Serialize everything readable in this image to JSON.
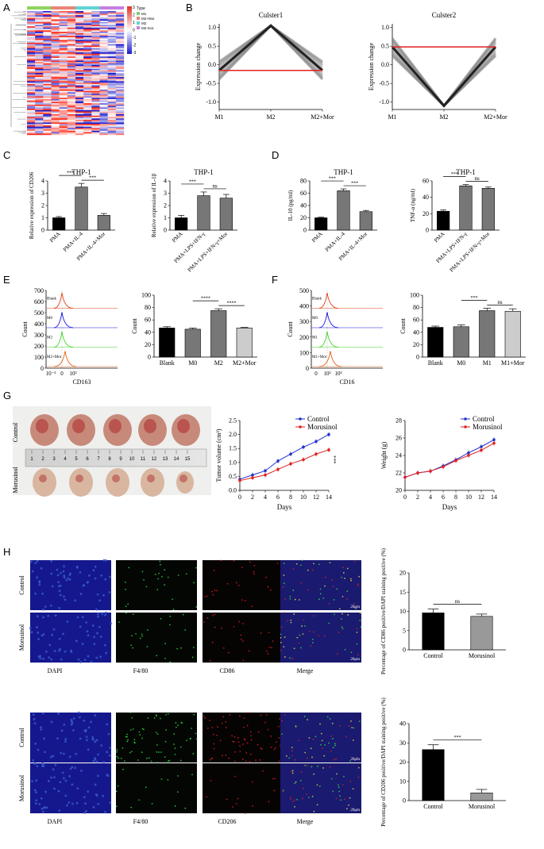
{
  "panels": {
    "A": "A",
    "B": "B",
    "C": "C",
    "D": "D",
    "E": "E",
    "F": "F",
    "G": "G",
    "H": "H"
  },
  "colors": {
    "blue": "#2233cc",
    "red": "#e02020",
    "black": "#000000",
    "dark_gray": "#777777",
    "light_gray": "#cccccc",
    "heat_red": "#e0301e",
    "heat_blue": "#1a1acc"
  },
  "heatmap": {
    "legend_title": "Type",
    "legend_items": [
      {
        "label": "M1",
        "color": "#7ccd7c"
      },
      {
        "label": "M2+Mor",
        "color": "#e8857a"
      },
      {
        "label": "M2",
        "color": "#5fd3d3"
      },
      {
        "label": "M2-mor",
        "color": "#c77ee0"
      }
    ],
    "scale_ticks": [
      "3",
      "2",
      "1",
      "0",
      "-1",
      "-2",
      "-3"
    ],
    "top_bar_colors": [
      "#8fd45a",
      "#e8857a",
      "#5fd3d3",
      "#c77ee0"
    ]
  },
  "chart_data": [
    {
      "id": "B1",
      "type": "line",
      "title": "Culster1",
      "ylabel": "Expression change",
      "categories": [
        "M1",
        "M2",
        "M2+Mor"
      ],
      "yticks": [
        "1.0",
        "0.5",
        "0.0",
        "-0.5",
        "-1.0"
      ],
      "ylim": [
        -1.2,
        1.1
      ],
      "mean_line": [
        -0.15,
        1.05,
        -0.15
      ],
      "cluster_center": -0.15
    },
    {
      "id": "B2",
      "type": "line",
      "title": "Culster2",
      "ylabel": "Expression change",
      "categories": [
        "M1",
        "M2",
        "M2+Mor"
      ],
      "yticks": [
        "1.0",
        "0.5",
        "0.0",
        "-0.5",
        "-1.0"
      ],
      "ylim": [
        -1.2,
        1.1
      ],
      "mean_line": [
        0.48,
        -1.1,
        0.48
      ],
      "cluster_center": 0.48
    },
    {
      "id": "C1",
      "type": "bar",
      "title": "THP-1",
      "ylabel": "Relative expression of CD206",
      "categories": [
        "PMA",
        "PMA+IL-4",
        "PMA+IL-4+Mor"
      ],
      "values": [
        1.0,
        3.5,
        1.2
      ],
      "errors": [
        0.1,
        0.3,
        0.15
      ],
      "yticks": [
        "0",
        "1",
        "2",
        "3",
        "4"
      ],
      "ylim": [
        0,
        4
      ],
      "sig": [
        "***",
        "***"
      ]
    },
    {
      "id": "C2",
      "type": "bar",
      "title": "THP-1",
      "ylabel": "Relative expression of IL-1β",
      "categories": [
        "PMA",
        "PMA+LPS+IFN-γ",
        "PMA+LPS+IFN-γ+Mor"
      ],
      "values": [
        1.0,
        2.8,
        2.6
      ],
      "errors": [
        0.2,
        0.3,
        0.3
      ],
      "yticks": [
        "0",
        "1",
        "2",
        "3",
        "4"
      ],
      "ylim": [
        0,
        4
      ],
      "sig": [
        "***",
        "ns"
      ]
    },
    {
      "id": "D1",
      "type": "bar",
      "title": "THP-1",
      "ylabel": "IL-10 (pg/ml)",
      "categories": [
        "PMA",
        "PMA+IL-4",
        "PMA+IL-4+Mor"
      ],
      "values": [
        20,
        64,
        30
      ],
      "errors": [
        1,
        3,
        2
      ],
      "yticks": [
        "0",
        "20",
        "40",
        "60",
        "80"
      ],
      "ylim": [
        0,
        80
      ],
      "sig": [
        "***",
        "***"
      ]
    },
    {
      "id": "D2",
      "type": "bar",
      "title": "THP-1",
      "ylabel": "TNF-α (ng/ml)",
      "categories": [
        "PMA",
        "PMA+LPS+IFN-γ",
        "PMA+LPS+IFN-γ+Mor"
      ],
      "values": [
        23,
        54,
        51
      ],
      "errors": [
        1.5,
        1.5,
        1.5
      ],
      "yticks": [
        "0",
        "20",
        "40",
        "60"
      ],
      "ylim": [
        0,
        60
      ],
      "sig": [
        "***",
        "ns"
      ]
    },
    {
      "id": "E1",
      "type": "histogram",
      "xlabel": "CD163",
      "ylabel": "Count",
      "yticks": [
        "700",
        "600",
        "500",
        "400",
        "300",
        "200",
        "100",
        "0"
      ],
      "xticks": [
        "10⁻²",
        "0",
        "10²"
      ],
      "tracks": [
        {
          "label": "Blank",
          "color": "#e04010"
        },
        {
          "label": "M0",
          "color": "#1010e0"
        },
        {
          "label": "M2",
          "color": "#40d020"
        },
        {
          "label": "M2+Mor",
          "color": "#e06010"
        }
      ]
    },
    {
      "id": "E2",
      "type": "bar",
      "ylabel": "Count",
      "categories": [
        "Blank",
        "M0",
        "M2",
        "M2+Mor"
      ],
      "values": [
        47,
        45,
        75,
        47
      ],
      "errors": [
        2,
        2,
        3,
        1
      ],
      "colors": [
        "#000000",
        "#777777",
        "#777777",
        "#cccccc"
      ],
      "yticks": [
        "0",
        "20",
        "40",
        "60",
        "80",
        "100"
      ],
      "ylim": [
        0,
        100
      ],
      "sig": [
        "****",
        "****"
      ]
    },
    {
      "id": "F1",
      "type": "histogram",
      "xlabel": "CD16",
      "ylabel": "Count",
      "yticks": [
        "500",
        "400",
        "300",
        "200",
        "100",
        "0"
      ],
      "xticks": [
        "0",
        "10²",
        "10³"
      ],
      "tracks": [
        {
          "label": "Blank",
          "color": "#e04010"
        },
        {
          "label": "M0",
          "color": "#1010e0"
        },
        {
          "label": "M1",
          "color": "#40d020"
        },
        {
          "label": "M1+Mor",
          "color": "#e06010"
        }
      ]
    },
    {
      "id": "F2",
      "type": "bar",
      "ylabel": "Count",
      "categories": [
        "Blank",
        "M0",
        "M1",
        "M1+Mor"
      ],
      "values": [
        48,
        49,
        75,
        74
      ],
      "errors": [
        2,
        3,
        4,
        4
      ],
      "colors": [
        "#000000",
        "#777777",
        "#777777",
        "#cccccc"
      ],
      "yticks": [
        "0",
        "20",
        "40",
        "60",
        "80",
        "100"
      ],
      "ylim": [
        0,
        100
      ],
      "sig": [
        "***",
        "ns"
      ]
    },
    {
      "id": "G1",
      "type": "line",
      "ylabel": "Tumor volume (cm³)",
      "xlabel": "Days",
      "x": [
        0,
        2,
        4,
        6,
        8,
        10,
        12,
        14
      ],
      "xticks": [
        "0",
        "2",
        "4",
        "6",
        "8",
        "10",
        "12",
        "14"
      ],
      "yticks": [
        "0.0",
        "0.5",
        "1.0",
        "1.5",
        "2.0",
        "2.5"
      ],
      "ylim": [
        0,
        2.5
      ],
      "series": [
        {
          "name": "Control",
          "color": "#2233cc",
          "values": [
            0.4,
            0.55,
            0.7,
            1.05,
            1.3,
            1.55,
            1.75,
            2.0
          ]
        },
        {
          "name": "Morusinol",
          "color": "#e02020",
          "values": [
            0.35,
            0.45,
            0.55,
            0.75,
            0.95,
            1.1,
            1.3,
            1.45
          ]
        }
      ],
      "sig": "***"
    },
    {
      "id": "G2",
      "type": "line",
      "ylabel": "Weight (g)",
      "xlabel": "Days",
      "x": [
        0,
        2,
        4,
        6,
        8,
        10,
        12,
        14
      ],
      "xticks": [
        "0",
        "2",
        "4",
        "6",
        "8",
        "10",
        "12",
        "14"
      ],
      "yticks": [
        "20",
        "22",
        "24",
        "26",
        "28"
      ],
      "ylim": [
        20,
        28
      ],
      "series": [
        {
          "name": "Control",
          "color": "#2233cc",
          "values": [
            21.5,
            22,
            22.2,
            22.8,
            23.5,
            24.3,
            25,
            25.8
          ]
        },
        {
          "name": "Morusinol",
          "color": "#e02020",
          "values": [
            21.5,
            22,
            22.2,
            22.7,
            23.4,
            24,
            24.6,
            25.4
          ]
        }
      ]
    },
    {
      "id": "H1",
      "type": "bar",
      "ylabel": "Percentage of CD86 positive/DAPI staining positive (%)",
      "categories": [
        "Control",
        "Morusinol"
      ],
      "values": [
        9.6,
        8.7
      ],
      "errors": [
        1.0,
        0.6
      ],
      "colors": [
        "#000000",
        "#999999"
      ],
      "yticks": [
        "0",
        "5",
        "10",
        "15",
        "20"
      ],
      "ylim": [
        0,
        20
      ],
      "sig": "ns"
    },
    {
      "id": "H2",
      "type": "bar",
      "ylabel": "Percentage of CD206 positive/DAPI staining positive (%)",
      "categories": [
        "Control",
        "Morusinol"
      ],
      "values": [
        26.5,
        4.0
      ],
      "errors": [
        2.5,
        1.8
      ],
      "colors": [
        "#000000",
        "#999999"
      ],
      "yticks": [
        "0",
        "10",
        "20",
        "30",
        "40"
      ],
      "ylim": [
        0,
        40
      ],
      "sig": "***"
    }
  ],
  "photo": {
    "row_labels": [
      "Control",
      "Morusinol"
    ],
    "ruler_numbers": [
      "1",
      "2",
      "3",
      "4",
      "5",
      "6",
      "7",
      "8",
      "9",
      "10",
      "11",
      "12",
      "13",
      "14",
      "15"
    ]
  },
  "micro": {
    "row_labels": [
      "Control",
      "Morusinol"
    ],
    "columns_top": [
      "DAPI",
      "F4/80",
      "CD86",
      "Merge"
    ],
    "columns_bottom": [
      "DAPI",
      "F4/80",
      "CD206",
      "Merge"
    ],
    "scale": "20μm"
  }
}
